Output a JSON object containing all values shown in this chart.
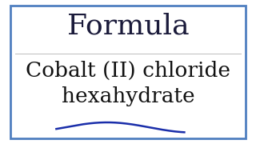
{
  "background_color": "#ffffff",
  "border_color": "#4f7fc0",
  "border_linewidth": 2.0,
  "title_text": "Formula",
  "title_color": "#1a1a3a",
  "title_fontsize": 26,
  "title_fontstyle": "normal",
  "title_fontweight": "normal",
  "title_fontfamily": "serif",
  "line1_text": "Cobalt (II) chloride",
  "line2_text": "hexahydrate",
  "body_color": "#111111",
  "body_fontsize": 19,
  "body_fontfamily": "serif",
  "wave_color": "#1a2eaa",
  "wave_linewidth": 1.8,
  "divider_color": "#bbbbbb",
  "divider_linewidth": 0.7
}
